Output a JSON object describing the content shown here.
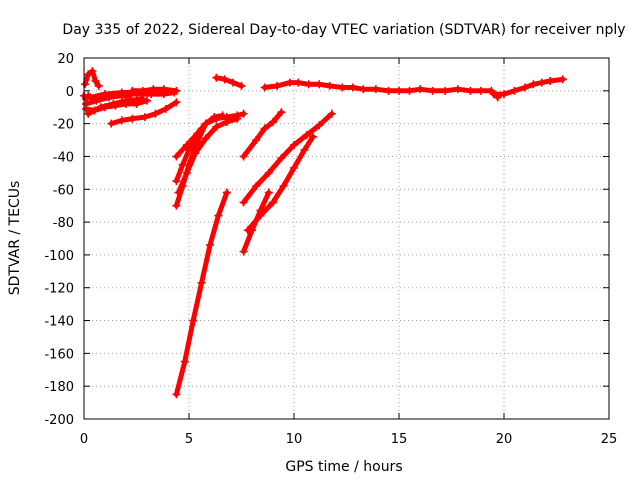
{
  "chart_data": {
    "type": "scatter",
    "title": "Day 335 of 2022, Sidereal Day-to-day VTEC variation (SDTVAR) for receiver nply",
    "xlabel": "GPS time / hours",
    "ylabel": "SDTVAR / TECUs",
    "xlim": [
      0,
      25
    ],
    "ylim": [
      -200,
      20
    ],
    "xticks": [
      0,
      5,
      10,
      15,
      20,
      25
    ],
    "yticks": [
      20,
      0,
      -20,
      -40,
      -60,
      -80,
      -100,
      -120,
      -140,
      -160,
      -180,
      -200
    ],
    "grid": true,
    "marker": "plus",
    "color": "#ff0000",
    "series": [
      {
        "points": [
          [
            0.05,
            4
          ],
          [
            0.2,
            10
          ],
          [
            0.4,
            12
          ],
          [
            0.55,
            6
          ],
          [
            0.7,
            3
          ]
        ]
      },
      {
        "points": [
          [
            0.0,
            -3
          ],
          [
            0.1,
            -5
          ],
          [
            0.2,
            -3
          ]
        ]
      },
      {
        "points": [
          [
            0.1,
            -11
          ],
          [
            0.5,
            -12
          ],
          [
            1.0,
            -10
          ],
          [
            1.5,
            -9
          ],
          [
            2.0,
            -8
          ],
          [
            2.5,
            -8
          ],
          [
            3.0,
            -6
          ]
        ]
      },
      {
        "points": [
          [
            0.1,
            -8
          ],
          [
            0.6,
            -6
          ],
          [
            1.2,
            -4
          ],
          [
            1.8,
            -3
          ],
          [
            2.2,
            -3
          ]
        ]
      },
      {
        "points": [
          [
            0.2,
            -14
          ],
          [
            0.8,
            -10
          ],
          [
            1.4,
            -8
          ],
          [
            2.0,
            -6
          ],
          [
            2.8,
            -5
          ]
        ]
      },
      {
        "points": [
          [
            0.3,
            -4
          ],
          [
            1.0,
            -2
          ],
          [
            1.8,
            -1
          ],
          [
            2.4,
            -1
          ]
        ]
      },
      {
        "points": [
          [
            2.3,
            0
          ],
          [
            2.8,
            0
          ],
          [
            3.3,
            1
          ],
          [
            3.8,
            1
          ],
          [
            4.4,
            0
          ]
        ]
      },
      {
        "points": [
          [
            2.5,
            -2
          ],
          [
            3.2,
            -2
          ],
          [
            3.8,
            -2
          ],
          [
            4.3,
            -1
          ]
        ]
      },
      {
        "points": [
          [
            1.3,
            -20
          ],
          [
            1.8,
            -18
          ],
          [
            2.3,
            -17
          ],
          [
            2.9,
            -16
          ],
          [
            3.4,
            -14
          ],
          [
            3.9,
            -11
          ],
          [
            4.4,
            -7
          ]
        ]
      },
      {
        "points": [
          [
            6.3,
            8
          ],
          [
            6.7,
            7
          ],
          [
            7.1,
            5
          ],
          [
            7.5,
            3
          ]
        ]
      },
      {
        "points": [
          [
            8.6,
            2
          ],
          [
            9.2,
            3
          ],
          [
            9.8,
            5
          ],
          [
            10.2,
            5
          ],
          [
            10.7,
            4
          ],
          [
            11.2,
            4
          ],
          [
            11.7,
            3
          ],
          [
            12.3,
            2
          ],
          [
            12.8,
            2
          ],
          [
            13.3,
            1
          ],
          [
            13.9,
            1
          ],
          [
            14.5,
            0
          ],
          [
            15.0,
            0
          ],
          [
            15.5,
            0
          ],
          [
            16.0,
            1
          ],
          [
            16.6,
            0
          ],
          [
            17.2,
            0
          ],
          [
            17.8,
            1
          ],
          [
            18.4,
            0
          ],
          [
            18.9,
            0
          ],
          [
            19.4,
            0
          ],
          [
            19.7,
            -4
          ]
        ]
      },
      {
        "points": [
          [
            19.5,
            -2
          ],
          [
            20.0,
            -2
          ],
          [
            20.5,
            0
          ],
          [
            21.0,
            2
          ],
          [
            21.4,
            4
          ],
          [
            21.8,
            5
          ],
          [
            22.2,
            6
          ],
          [
            22.8,
            7
          ]
        ]
      },
      {
        "points": [
          [
            4.4,
            -40
          ],
          [
            4.9,
            -33
          ],
          [
            5.4,
            -26
          ],
          [
            5.8,
            -20
          ],
          [
            6.3,
            -17
          ],
          [
            6.8,
            -16
          ],
          [
            7.3,
            -15
          ],
          [
            7.6,
            -14
          ]
        ]
      },
      {
        "points": [
          [
            4.4,
            -55
          ],
          [
            4.7,
            -45
          ],
          [
            5.0,
            -36
          ],
          [
            5.3,
            -29
          ],
          [
            5.6,
            -23
          ]
        ]
      },
      {
        "points": [
          [
            4.4,
            -70
          ],
          [
            4.7,
            -58
          ],
          [
            5.0,
            -45
          ],
          [
            5.4,
            -31
          ],
          [
            5.8,
            -20
          ],
          [
            6.2,
            -16
          ],
          [
            6.6,
            -15
          ]
        ]
      },
      {
        "points": [
          [
            4.5,
            -62
          ],
          [
            4.9,
            -50
          ],
          [
            5.3,
            -38
          ],
          [
            5.8,
            -29
          ],
          [
            6.3,
            -22
          ],
          [
            6.8,
            -19
          ],
          [
            7.3,
            -17
          ]
        ]
      },
      {
        "points": [
          [
            4.4,
            -185
          ],
          [
            4.8,
            -165
          ],
          [
            5.2,
            -140
          ],
          [
            5.6,
            -117
          ],
          [
            6.0,
            -94
          ],
          [
            6.4,
            -76
          ],
          [
            6.8,
            -62
          ]
        ]
      },
      {
        "points": [
          [
            7.6,
            -40
          ],
          [
            8.2,
            -30
          ],
          [
            8.6,
            -23
          ],
          [
            9.0,
            -19
          ],
          [
            9.4,
            -13
          ]
        ]
      },
      {
        "points": [
          [
            7.6,
            -68
          ],
          [
            8.2,
            -58
          ],
          [
            8.8,
            -50
          ],
          [
            9.4,
            -41
          ],
          [
            10.0,
            -33
          ],
          [
            10.6,
            -27
          ],
          [
            11.2,
            -21
          ],
          [
            11.8,
            -14
          ]
        ]
      },
      {
        "points": [
          [
            7.6,
            -98
          ],
          [
            8.0,
            -85
          ],
          [
            8.4,
            -73
          ],
          [
            8.8,
            -62
          ]
        ]
      },
      {
        "points": [
          [
            7.8,
            -85
          ],
          [
            8.4,
            -76
          ],
          [
            9.0,
            -68
          ],
          [
            9.5,
            -58
          ],
          [
            10.0,
            -47
          ],
          [
            10.5,
            -36
          ],
          [
            10.9,
            -28
          ]
        ]
      }
    ]
  }
}
